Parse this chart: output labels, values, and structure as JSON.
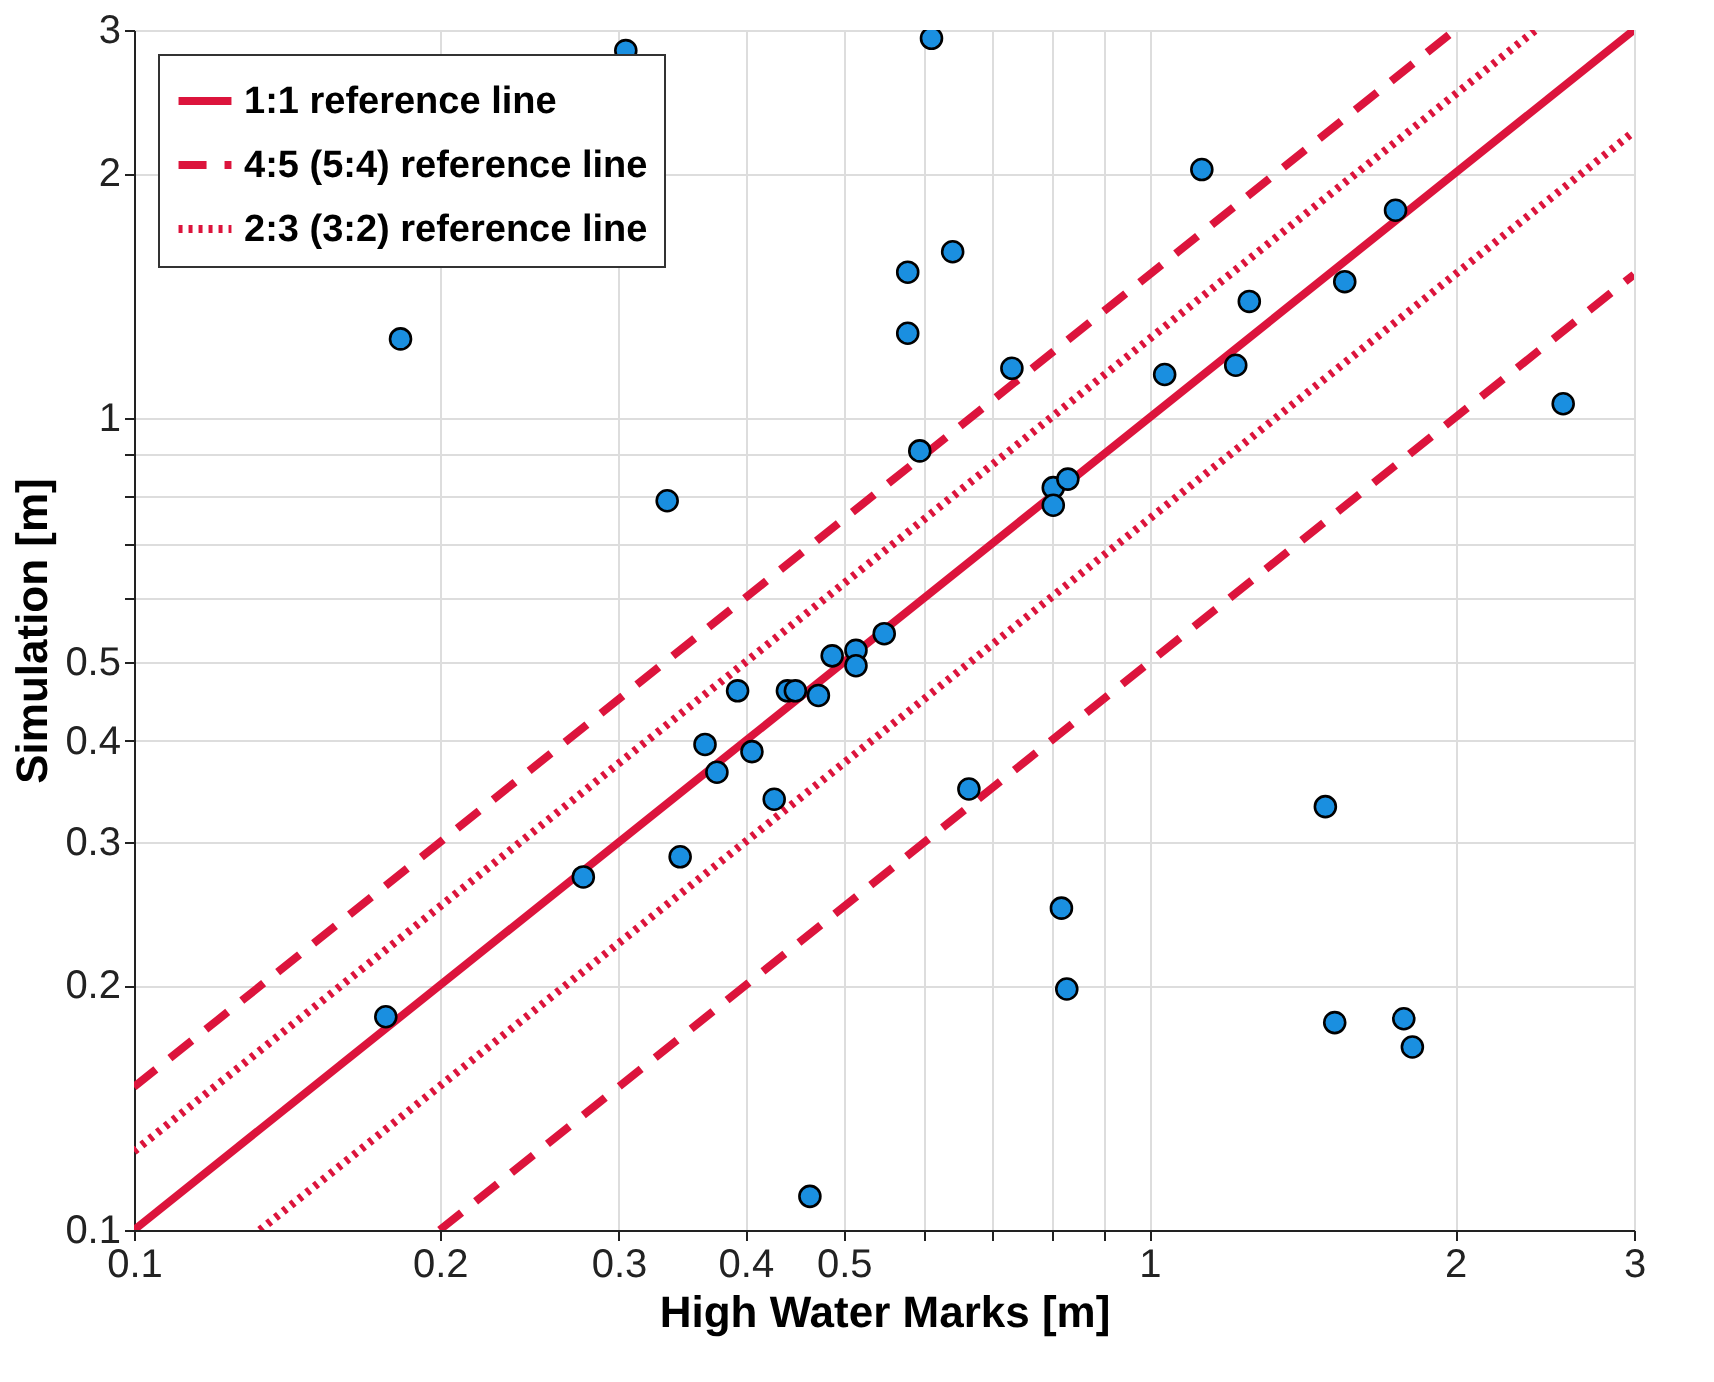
{
  "chart_data": {
    "type": "scatter",
    "xlabel": "High Water Marks [m]",
    "ylabel": "Simulation [m]",
    "log": "xy",
    "grid": true,
    "legend": "top left",
    "xlim": [
      0.1,
      3
    ],
    "ylim": [
      0.1,
      3
    ],
    "xticks": [
      0.1,
      0.2,
      0.3,
      0.4,
      0.5,
      {
        "value": 0.6,
        "label": null
      },
      {
        "value": 0.7,
        "label": null
      },
      {
        "value": 0.8,
        "label": null
      },
      {
        "value": 0.9,
        "label": null
      },
      1,
      2,
      3
    ],
    "yticks": [
      0.1,
      0.2,
      0.3,
      0.4,
      0.5,
      {
        "value": 0.6,
        "label": null
      },
      {
        "value": 0.7,
        "label": null
      },
      {
        "value": 0.8,
        "label": null
      },
      {
        "value": 0.9,
        "label": null
      },
      1,
      2,
      3
    ],
    "series": [
      {
        "name": "1:1 reference line",
        "type": "line",
        "line_style": "solid",
        "color": "#dc143c",
        "x": [
          0.1,
          3
        ],
        "values": [
          0.1,
          3
        ]
      },
      {
        "name": "4:5 (5:4) reference line",
        "type": "line",
        "line_style": "dashed",
        "color": "#dc143c",
        "x": [
          0.1,
          2
        ],
        "values": [
          0.15,
          3
        ]
      },
      {
        "type": "line",
        "line_style": "dashed",
        "color": "#dc143c",
        "x": [
          0.2,
          3
        ],
        "values": [
          0.1,
          1.5
        ]
      },
      {
        "name": "2:3 (3:2) reference line",
        "type": "line",
        "line_style": "dotted",
        "color": "#dc143c",
        "x": [
          0.1,
          2.4
        ],
        "values": [
          0.125,
          3
        ]
      },
      {
        "type": "line",
        "line_style": "dotted",
        "color": "#dc143c",
        "x": [
          0.133,
          3
        ],
        "values": [
          0.1,
          2.25
        ]
      },
      {
        "marker": "circle",
        "color": "#1a8fe0",
        "x": [
          0.305,
          0.183,
          0.335,
          0.61,
          1.126,
          1.747,
          0.64,
          0.578,
          0.578,
          1.557,
          1.254,
          0.732,
          1.035,
          1.216,
          2.555,
          0.594,
          0.804,
          0.831,
          0.804,
          0.548,
          0.487,
          0.514,
          0.514,
          0.393,
          0.44,
          0.448,
          0.472,
          0.365,
          0.406,
          0.375,
          0.427,
          0.345,
          0.277,
          0.177,
          0.463,
          0.664,
          1.49,
          0.819,
          0.829,
          1.522,
          1.78,
          1.815
        ],
        "values": [
          2.83,
          1.25,
          0.79,
          2.93,
          2.02,
          1.8,
          1.6,
          1.51,
          1.27,
          1.47,
          1.39,
          1.15,
          1.13,
          1.16,
          1.04,
          0.91,
          0.82,
          0.84,
          0.78,
          0.542,
          0.509,
          0.517,
          0.495,
          0.461,
          0.461,
          0.461,
          0.455,
          0.396,
          0.388,
          0.366,
          0.339,
          0.288,
          0.272,
          0.183,
          0.11,
          0.349,
          0.332,
          0.249,
          0.198,
          0.18,
          0.182,
          0.168
        ]
      }
    ]
  }
}
